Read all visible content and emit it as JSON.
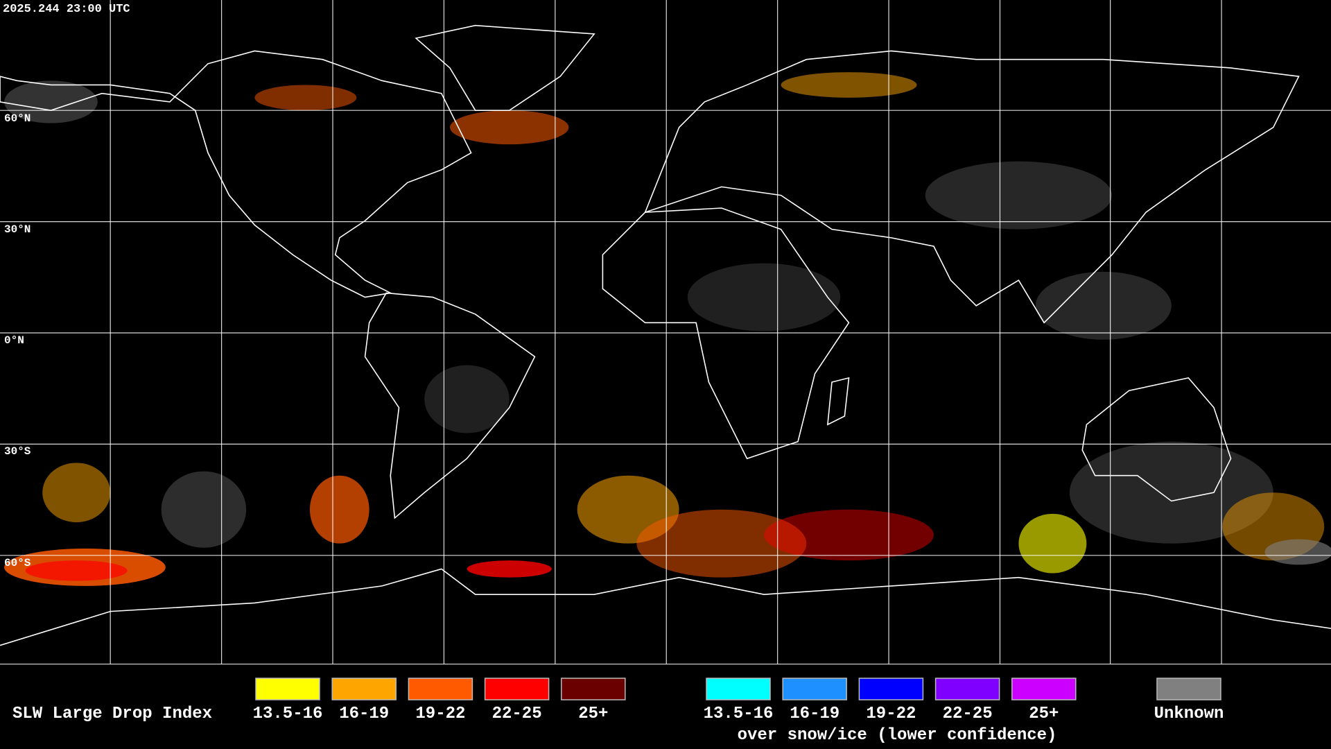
{
  "header": {
    "timestamp": "2025.244 23:00 UTC"
  },
  "map": {
    "latitude_labels": [
      "60°N",
      "30°N",
      "0°N",
      "30°S",
      "60°S"
    ]
  },
  "legend": {
    "title": "SLW Large Drop Index",
    "groups": [
      {
        "items": [
          {
            "label": "13.5-16",
            "color": "#ffff00"
          },
          {
            "label": "16-19",
            "color": "#ffa500"
          },
          {
            "label": "19-22",
            "color": "#ff5a00"
          },
          {
            "label": "22-25",
            "color": "#ff0000"
          },
          {
            "label": "25+",
            "color": "#6b0000"
          }
        ]
      },
      {
        "items": [
          {
            "label": "13.5-16",
            "color": "#00ffff"
          },
          {
            "label": "16-19",
            "color": "#1e90ff"
          },
          {
            "label": "19-22",
            "color": "#0000ff"
          },
          {
            "label": "22-25",
            "color": "#7f00ff"
          },
          {
            "label": "25+",
            "color": "#cc00ff"
          }
        ],
        "caption": "over snow/ice (lower confidence)"
      }
    ],
    "unknown": {
      "label": "Unknown",
      "color": "#808080"
    }
  }
}
